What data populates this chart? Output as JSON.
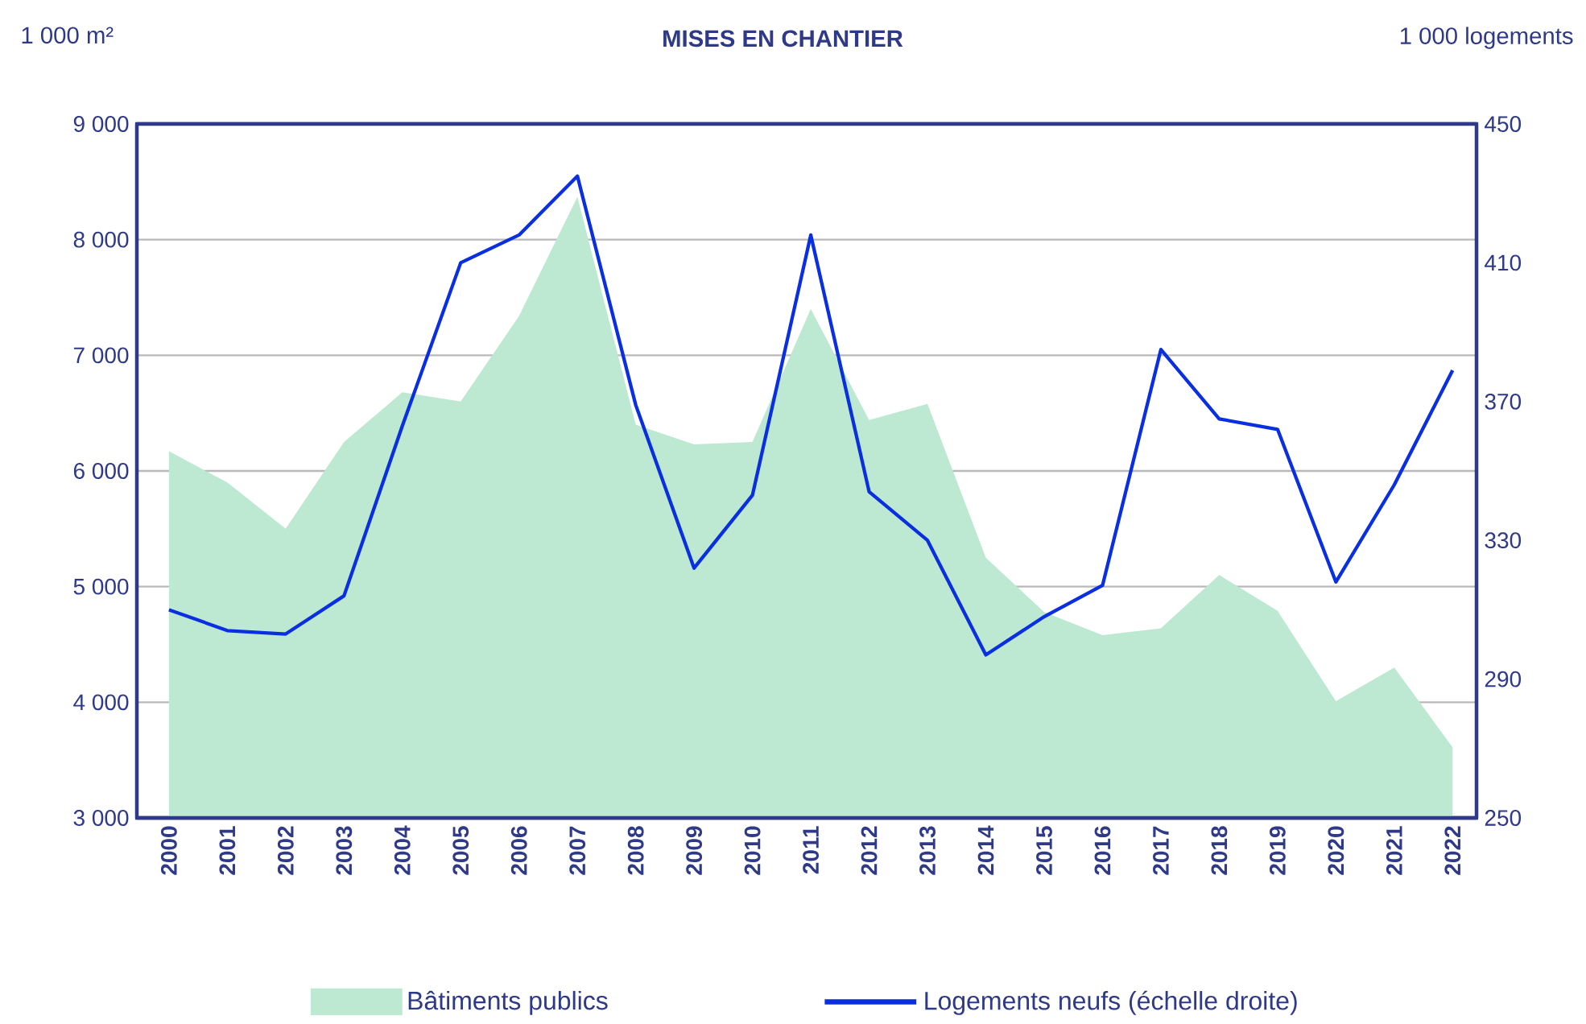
{
  "chart_data": {
    "type": "area",
    "title": "MISES EN CHANTIER",
    "ylabel": "1 000 m²",
    "y2label": "1 000 logements",
    "categories": [
      "2000",
      "2001",
      "2002",
      "2003",
      "2004",
      "2005",
      "2006",
      "2007",
      "2008",
      "2009",
      "2010",
      "2011",
      "2012",
      "2013",
      "2014",
      "2015",
      "2016",
      "2017",
      "2018",
      "2019",
      "2020",
      "2021",
      "2022"
    ],
    "series": [
      {
        "name": "Bâtiments publics",
        "color": "#bde8d2",
        "values": [
          6170,
          5900,
          5500,
          6250,
          6680,
          6600,
          7340,
          8370,
          6400,
          6230,
          6250,
          7400,
          6440,
          6580,
          5250,
          4780,
          4580,
          4640,
          5100,
          4790,
          4010,
          4300,
          3610
        ]
      },
      {
        "name": "Logements neufs (échelle droite)",
        "type": "line",
        "axis": "y2",
        "color": "#0a2fe0",
        "values": [
          310,
          304,
          303,
          314,
          363,
          410,
          418,
          435,
          369,
          322,
          343,
          418,
          344,
          330,
          297,
          308,
          317,
          385,
          365,
          362,
          318,
          346,
          379
        ]
      }
    ],
    "ylim": [
      3000,
      9000
    ],
    "yticks": [
      {
        "value": 3000,
        "label": "3 000"
      },
      {
        "value": 4000,
        "label": "4 000"
      },
      {
        "value": 5000,
        "label": "5 000"
      },
      {
        "value": 6000,
        "label": "6 000"
      },
      {
        "value": 7000,
        "label": "7 000"
      },
      {
        "value": 8000,
        "label": "8 000"
      },
      {
        "value": 9000,
        "label": "9 000"
      }
    ],
    "y2lim": [
      250,
      450
    ],
    "y2ticks": [
      250,
      290,
      330,
      370,
      410,
      450
    ],
    "grid": "y",
    "legend": "bottom"
  }
}
